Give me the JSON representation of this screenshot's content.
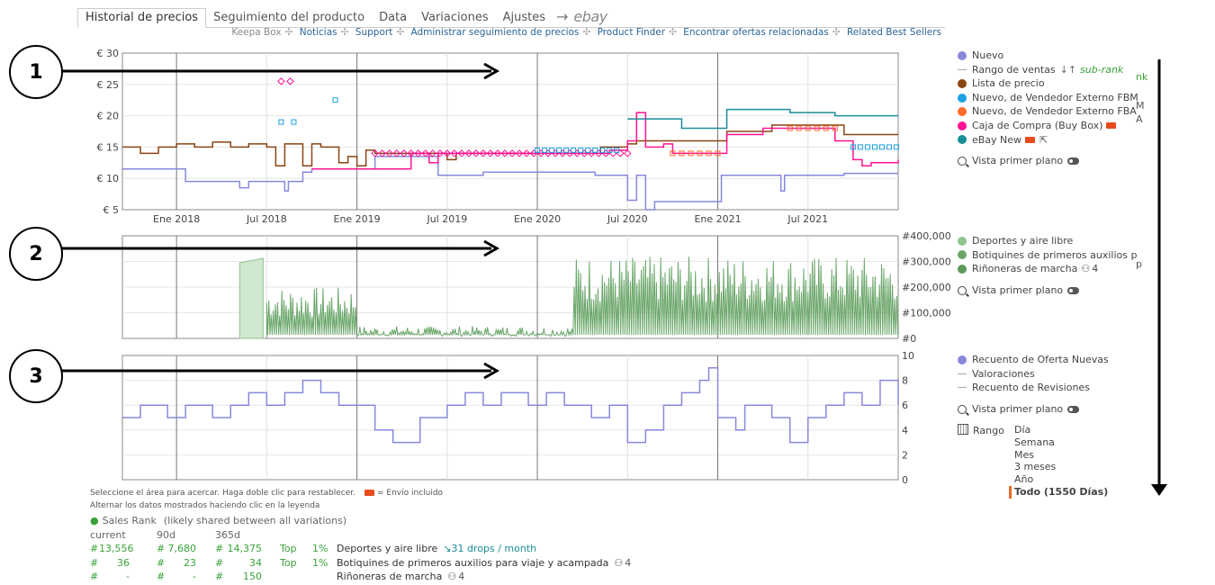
{
  "tabs": [
    {
      "label": "Historial de precios",
      "active": true
    },
    {
      "label": "Seguimiento del producto"
    },
    {
      "label": "Data"
    },
    {
      "label": "Variaciones"
    },
    {
      "label": "Ajustes"
    }
  ],
  "tab_arrow": "→",
  "tab_ebay": "ebay",
  "links": [
    "Keepa Box",
    "Noticias",
    "Support",
    "Administrar seguimiento de precios",
    "Product Finder",
    "Encontrar ofertas relacionadas",
    "Related Best Sellers"
  ],
  "callouts": [
    "1",
    "2",
    "3"
  ],
  "chart_data": [
    {
      "type": "line",
      "name": "price",
      "y_ticks": [
        "€ 30",
        "€ 25",
        "€ 20",
        "€ 15",
        "€ 10",
        "€ 5"
      ],
      "ylim": [
        5,
        30
      ],
      "x_ticks": [
        "Ene 2018",
        "Jul 2018",
        "Ene 2019",
        "Jul 2019",
        "Ene 2020",
        "Jul 2020",
        "Ene 2021",
        "Jul 2021"
      ],
      "grid": true,
      "series": [
        {
          "name": "Nuevo",
          "color": "#8888dd",
          "values": [
            [
              2017.7,
              11.5
            ],
            [
              2018.0,
              11.5
            ],
            [
              2018.05,
              9.5
            ],
            [
              2018.3,
              9.5
            ],
            [
              2018.35,
              8.5
            ],
            [
              2018.4,
              9.5
            ],
            [
              2018.55,
              9.5
            ],
            [
              2018.6,
              8
            ],
            [
              2018.62,
              9.5
            ],
            [
              2018.7,
              11
            ],
            [
              2018.75,
              11.5
            ],
            [
              2019.05,
              11.5
            ],
            [
              2019.1,
              13.5
            ],
            [
              2019.4,
              13.5
            ],
            [
              2019.45,
              10.5
            ],
            [
              2019.6,
              10.5
            ],
            [
              2019.7,
              11
            ],
            [
              2020.0,
              11
            ],
            [
              2020.3,
              11
            ],
            [
              2020.32,
              10.5
            ],
            [
              2020.45,
              10.5
            ],
            [
              2020.5,
              6.5
            ],
            [
              2020.55,
              10.5
            ],
            [
              2020.6,
              5
            ],
            [
              2020.65,
              6.3
            ],
            [
              2020.85,
              6.3
            ],
            [
              2021.0,
              6.3
            ],
            [
              2021.02,
              10.5
            ],
            [
              2021.3,
              10.5
            ],
            [
              2021.35,
              8
            ],
            [
              2021.37,
              10.5
            ],
            [
              2021.6,
              10.5
            ],
            [
              2021.7,
              10.8
            ],
            [
              2022.0,
              10.8
            ]
          ]
        },
        {
          "name": "Lista de precio",
          "color": "#8b4513",
          "values": [
            [
              2017.7,
              15
            ],
            [
              2017.8,
              14
            ],
            [
              2017.9,
              15
            ],
            [
              2018.0,
              15.5
            ],
            [
              2018.1,
              15
            ],
            [
              2018.2,
              15.8
            ],
            [
              2018.3,
              15
            ],
            [
              2018.4,
              15.5
            ],
            [
              2018.5,
              15
            ],
            [
              2018.55,
              12
            ],
            [
              2018.6,
              15.5
            ],
            [
              2018.7,
              12
            ],
            [
              2018.75,
              15.5
            ],
            [
              2018.8,
              15
            ],
            [
              2018.9,
              12.5
            ],
            [
              2018.95,
              13.5
            ],
            [
              2019.0,
              12
            ],
            [
              2019.05,
              14.5
            ],
            [
              2019.1,
              14
            ],
            [
              2019.4,
              14
            ],
            [
              2019.5,
              13
            ],
            [
              2019.55,
              14
            ],
            [
              2020.3,
              14
            ],
            [
              2020.35,
              15
            ],
            [
              2020.5,
              15.5
            ],
            [
              2020.55,
              16
            ],
            [
              2021.05,
              17.5
            ],
            [
              2021.3,
              18.5
            ],
            [
              2021.6,
              18.5
            ],
            [
              2021.7,
              17
            ]
          ]
        },
        {
          "name": "Caja de Compra (Buy Box)",
          "color": "#ff1493",
          "values": [
            [
              2018.75,
              11.5
            ],
            [
              2018.8,
              11.5
            ],
            [
              2019.3,
              14
            ],
            [
              2019.4,
              12.5
            ],
            [
              2019.45,
              14
            ],
            [
              2020.3,
              14
            ],
            [
              2020.4,
              14.5
            ],
            [
              2020.5,
              16
            ],
            [
              2020.55,
              20.5
            ],
            [
              2020.6,
              15
            ],
            [
              2020.7,
              15.5
            ],
            [
              2020.75,
              14
            ],
            [
              2021.0,
              14
            ],
            [
              2021.05,
              17
            ],
            [
              2021.2,
              17
            ],
            [
              2021.25,
              18
            ],
            [
              2021.6,
              18
            ],
            [
              2021.65,
              16
            ],
            [
              2021.7,
              16
            ],
            [
              2021.75,
              13
            ],
            [
              2021.8,
              12
            ],
            [
              2021.85,
              12.5
            ],
            [
              2022.0,
              13
            ]
          ]
        },
        {
          "name": "eBay New",
          "color": "#1a8e99",
          "values": [
            [
              2020.5,
              19.5
            ],
            [
              2020.75,
              19.5
            ],
            [
              2020.8,
              18
            ],
            [
              2021.0,
              18
            ],
            [
              2021.05,
              21
            ],
            [
              2021.35,
              21
            ],
            [
              2021.4,
              20.5
            ],
            [
              2021.6,
              20.5
            ],
            [
              2021.65,
              20
            ],
            [
              2022.0,
              20
            ]
          ]
        }
      ]
    },
    {
      "type": "area",
      "name": "sales-rank",
      "y_ticks": [
        "#400,000",
        "#300,000",
        "#200,000",
        "#100,000",
        "#0"
      ],
      "ylim": [
        0,
        400000
      ],
      "grid": true,
      "series": [
        {
          "name": "Deportes y aire libre",
          "color": "#8fc48f"
        },
        {
          "name": "Botiquines de primeros auxilios p",
          "color": "#6aa66a"
        },
        {
          "name": "Riñoneras de marcha",
          "color": "#5a9a5a"
        }
      ]
    },
    {
      "type": "line",
      "name": "offer-count",
      "y_ticks": [
        "10",
        "8",
        "6",
        "4",
        "2",
        "0"
      ],
      "ylim": [
        0,
        10
      ],
      "grid": true,
      "series": [
        {
          "name": "Recuento de Oferta Nuevas",
          "color": "#8888dd",
          "values": [
            [
              2017.7,
              5
            ],
            [
              2017.8,
              6
            ],
            [
              2017.95,
              5
            ],
            [
              2018.05,
              6
            ],
            [
              2018.2,
              5
            ],
            [
              2018.3,
              6
            ],
            [
              2018.4,
              7
            ],
            [
              2018.5,
              6
            ],
            [
              2018.6,
              7
            ],
            [
              2018.7,
              8
            ],
            [
              2018.8,
              7
            ],
            [
              2018.9,
              6
            ],
            [
              2019.0,
              6
            ],
            [
              2019.1,
              4
            ],
            [
              2019.2,
              3
            ],
            [
              2019.35,
              5
            ],
            [
              2019.5,
              6
            ],
            [
              2019.6,
              7
            ],
            [
              2019.7,
              6
            ],
            [
              2019.8,
              7
            ],
            [
              2019.95,
              6
            ],
            [
              2020.05,
              7
            ],
            [
              2020.15,
              6
            ],
            [
              2020.3,
              5
            ],
            [
              2020.4,
              6
            ],
            [
              2020.5,
              3
            ],
            [
              2020.6,
              4
            ],
            [
              2020.7,
              6
            ],
            [
              2020.8,
              7
            ],
            [
              2020.9,
              8
            ],
            [
              2020.95,
              9
            ],
            [
              2021.0,
              5
            ],
            [
              2021.1,
              4
            ],
            [
              2021.15,
              6
            ],
            [
              2021.3,
              5
            ],
            [
              2021.4,
              3
            ],
            [
              2021.5,
              5
            ],
            [
              2021.6,
              6
            ],
            [
              2021.7,
              7
            ],
            [
              2021.8,
              6
            ],
            [
              2021.9,
              8
            ],
            [
              2022.0,
              6
            ]
          ]
        },
        {
          "name": "Valoraciones"
        },
        {
          "name": "Recuento de Revisiones"
        }
      ]
    }
  ],
  "legend1": {
    "items": [
      {
        "label": "Nuevo",
        "kind": "dot",
        "color": "#8888dd"
      },
      {
        "label": "Rango de ventas",
        "kind": "dash",
        "suffix": "sub-rank"
      },
      {
        "label": "Lista de precio",
        "kind": "dot",
        "color": "#8b4513"
      },
      {
        "label": "Nuevo, de Vendedor Externo FBM",
        "kind": "dot",
        "color": "#1ba1e2"
      },
      {
        "label": "Nuevo, de Vendedor Externo FBA",
        "kind": "dot",
        "color": "#ff6a2a"
      },
      {
        "label": "Caja de Compra (Buy Box)",
        "kind": "dot",
        "color": "#ff1493"
      },
      {
        "label": "eBay New",
        "kind": "dot",
        "color": "#1a8e99"
      }
    ],
    "zoom": "Vista primer plano"
  },
  "legend2": {
    "items": [
      {
        "label": "Deportes y aire libre",
        "kind": "dot",
        "color": "#8fc48f"
      },
      {
        "label": "Botiquines de primeros auxilios p",
        "kind": "dot",
        "color": "#6aa66a"
      },
      {
        "label": "Riñoneras de marcha",
        "kind": "dot",
        "color": "#5a9a5a",
        "suffix": "4"
      }
    ],
    "zoom": "Vista primer plano"
  },
  "legend3": {
    "items": [
      {
        "label": "Recuento de Oferta Nuevas",
        "kind": "dot",
        "color": "#8888dd"
      },
      {
        "label": "Valoraciones",
        "kind": "dash"
      },
      {
        "label": "Recuento de Revisiones",
        "kind": "dash"
      }
    ],
    "zoom": "Vista primer plano"
  },
  "range": {
    "label": "Rango",
    "options": [
      "Día",
      "Semana",
      "Mes",
      "3 meses",
      "Año",
      "Todo (1550 Días)"
    ],
    "selected": 5
  },
  "notes": {
    "line1": "Seleccione el área para acercar. Haga doble clic para restablecer.",
    "shipping": "= Envío incluido",
    "line2": "Alternar los datos mostrados haciendo clic en la leyenda"
  },
  "sales": {
    "title": "Sales Rank",
    "subtitle": "(likely shared between all variations)",
    "headers": [
      "current",
      "90d",
      "365d"
    ],
    "rows": [
      {
        "current": "13,556",
        "d90": "7,680",
        "d365": "14,375",
        "top": "Top",
        "pct": "1%",
        "cat": "Deportes y aire libre",
        "extra": "31 drops / month"
      },
      {
        "current": "36",
        "d90": "23",
        "d365": "34",
        "top": "Top",
        "pct": "1%",
        "cat": "Botiquines de primeros auxilios para viaje y acampada",
        "extra": "4"
      },
      {
        "current": "-",
        "d90": "-",
        "d365": "150",
        "top": "",
        "pct": "",
        "cat": "Riñoneras de marcha",
        "extra": "4"
      }
    ]
  },
  "cut_texts": [
    "nk",
    "M",
    "A",
    "p"
  ]
}
